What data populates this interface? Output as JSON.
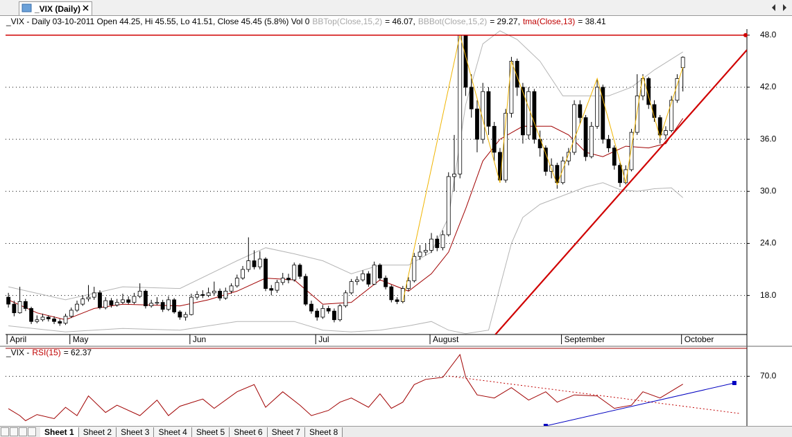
{
  "tab_title": "_VIX (Daily)",
  "sheets": [
    "Sheet 1",
    "Sheet 2",
    "Sheet 3",
    "Sheet 4",
    "Sheet 5",
    "Sheet 6",
    "Sheet 7",
    "Sheet 8"
  ],
  "chart_data": [
    {
      "type": "candlestick",
      "title": "_VIX - Daily 03-10-2011 Open 44.25, Hi 45.55, Lo 41.51, Close 45.45 (5.8%) Vol 0",
      "up_color": "#ffffff",
      "down_color": "#000000",
      "xlim": [
        -0.5,
        129.2
      ],
      "ylim": [
        13.5,
        48.7
      ],
      "xticks": [
        {
          "value": 0,
          "label": "April"
        },
        {
          "value": 11,
          "label": "May"
        },
        {
          "value": 32,
          "label": "Jun"
        },
        {
          "value": 54,
          "label": "Jul"
        },
        {
          "value": 74,
          "label": "August"
        },
        {
          "value": 97,
          "label": "September"
        },
        {
          "value": 118,
          "label": "October"
        }
      ],
      "yticks": [
        {
          "value": 18,
          "label": "18.0"
        },
        {
          "value": 24,
          "label": "24.0"
        },
        {
          "value": 30,
          "label": "30.0"
        },
        {
          "value": 36,
          "label": "36.0"
        },
        {
          "value": 42,
          "label": "42.0"
        },
        {
          "value": 48,
          "label": "48.0"
        }
      ],
      "grid": true,
      "x": [
        0,
        1,
        2,
        3,
        4,
        5,
        6,
        7,
        8,
        9,
        10,
        11,
        12,
        13,
        14,
        15,
        16,
        17,
        18,
        19,
        20,
        21,
        22,
        23,
        24,
        25,
        26,
        27,
        28,
        29,
        30,
        31,
        32,
        33,
        34,
        35,
        36,
        37,
        38,
        39,
        40,
        41,
        42,
        43,
        44,
        45,
        46,
        47,
        48,
        49,
        50,
        51,
        52,
        53,
        54,
        55,
        56,
        57,
        58,
        59,
        60,
        61,
        62,
        63,
        64,
        65,
        66,
        67,
        68,
        69,
        70,
        71,
        72,
        73,
        74,
        75,
        76,
        77,
        78,
        79,
        80,
        81,
        82,
        83,
        84,
        85,
        86,
        87,
        88,
        89,
        90,
        91,
        92,
        93,
        94,
        95,
        96,
        97,
        98,
        99,
        100,
        101,
        102,
        103,
        104,
        105,
        106,
        107,
        108,
        109,
        110,
        111,
        112,
        113,
        114,
        115,
        116,
        117,
        118
      ],
      "ohlc": [
        [
          17.8,
          18.3,
          16.6,
          17.0
        ],
        [
          17.0,
          17.4,
          15.6,
          16.0
        ],
        [
          16.0,
          19.0,
          15.9,
          17.3
        ],
        [
          17.3,
          17.6,
          16.2,
          16.5
        ],
        [
          16.5,
          16.7,
          14.7,
          15.0
        ],
        [
          15.0,
          15.7,
          14.8,
          15.2
        ],
        [
          15.2,
          15.9,
          15.0,
          15.5
        ],
        [
          15.5,
          15.7,
          15.0,
          15.3
        ],
        [
          15.3,
          15.6,
          14.7,
          15.0
        ],
        [
          15.0,
          15.3,
          14.5,
          14.8
        ],
        [
          14.8,
          15.9,
          14.6,
          15.6
        ],
        [
          15.6,
          16.6,
          15.4,
          16.3
        ],
        [
          16.3,
          17.4,
          16.1,
          17.0
        ],
        [
          17.0,
          18.0,
          16.8,
          17.6
        ],
        [
          17.6,
          19.2,
          17.3,
          17.8
        ],
        [
          17.8,
          19.0,
          17.5,
          18.3
        ],
        [
          18.3,
          18.6,
          16.4,
          16.6
        ],
        [
          16.6,
          17.8,
          16.4,
          17.4
        ],
        [
          17.4,
          17.7,
          16.6,
          16.9
        ],
        [
          16.9,
          17.6,
          16.7,
          17.2
        ],
        [
          17.2,
          18.2,
          17.0,
          17.5
        ],
        [
          17.5,
          17.9,
          17.0,
          17.2
        ],
        [
          17.2,
          18.3,
          17.0,
          17.9
        ],
        [
          17.9,
          19.4,
          17.7,
          18.5
        ],
        [
          18.5,
          18.7,
          16.5,
          16.8
        ],
        [
          16.8,
          17.5,
          16.6,
          17.1
        ],
        [
          17.1,
          17.8,
          16.9,
          17.2
        ],
        [
          17.2,
          17.5,
          16.1,
          16.4
        ],
        [
          16.4,
          17.9,
          16.2,
          17.5
        ],
        [
          17.5,
          17.7,
          15.9,
          16.1
        ],
        [
          16.1,
          16.3,
          15.2,
          15.5
        ],
        [
          15.5,
          16.1,
          15.1,
          15.8
        ],
        [
          15.8,
          18.2,
          15.7,
          17.8
        ],
        [
          17.8,
          18.5,
          17.5,
          18.1
        ],
        [
          18.1,
          18.6,
          17.7,
          18.0
        ],
        [
          18.0,
          18.9,
          17.8,
          18.3
        ],
        [
          18.3,
          19.6,
          18.0,
          18.5
        ],
        [
          18.5,
          18.8,
          17.4,
          17.7
        ],
        [
          17.7,
          18.9,
          17.5,
          18.5
        ],
        [
          18.5,
          19.4,
          18.2,
          19.1
        ],
        [
          19.1,
          20.4,
          18.9,
          20.0
        ],
        [
          20.0,
          21.4,
          19.8,
          21.0
        ],
        [
          21.0,
          24.7,
          20.7,
          22.0
        ],
        [
          22.0,
          23.2,
          21.0,
          21.3
        ],
        [
          21.3,
          23.1,
          21.0,
          22.2
        ],
        [
          22.2,
          22.4,
          18.5,
          18.8
        ],
        [
          18.8,
          19.2,
          18.0,
          18.6
        ],
        [
          18.6,
          19.8,
          18.3,
          19.5
        ],
        [
          19.5,
          20.6,
          19.2,
          20.0
        ],
        [
          20.0,
          20.5,
          19.4,
          19.8
        ],
        [
          19.8,
          21.8,
          19.6,
          21.5
        ],
        [
          21.5,
          21.7,
          19.9,
          20.2
        ],
        [
          20.2,
          20.5,
          16.8,
          17.0
        ],
        [
          17.0,
          17.4,
          15.9,
          16.2
        ],
        [
          16.2,
          16.5,
          15.1,
          15.5
        ],
        [
          15.5,
          16.9,
          15.3,
          16.5
        ],
        [
          16.5,
          16.8,
          15.9,
          16.2
        ],
        [
          16.2,
          16.5,
          14.9,
          15.2
        ],
        [
          15.2,
          17.0,
          15.0,
          16.8
        ],
        [
          16.8,
          18.6,
          16.6,
          18.3
        ],
        [
          18.3,
          19.9,
          18.1,
          19.6
        ],
        [
          19.6,
          20.2,
          19.2,
          19.8
        ],
        [
          19.8,
          20.9,
          19.6,
          20.5
        ],
        [
          20.5,
          20.8,
          19.0,
          19.3
        ],
        [
          19.3,
          21.9,
          19.2,
          21.5
        ],
        [
          21.5,
          21.7,
          19.7,
          20.0
        ],
        [
          20.0,
          20.3,
          18.7,
          19.0
        ],
        [
          19.0,
          19.2,
          17.2,
          17.5
        ],
        [
          17.5,
          17.8,
          17.0,
          17.3
        ],
        [
          17.3,
          19.1,
          17.1,
          18.8
        ],
        [
          18.8,
          20.1,
          18.5,
          19.7
        ],
        [
          19.7,
          22.9,
          19.5,
          22.5
        ],
        [
          22.5,
          23.8,
          22.1,
          23.0
        ],
        [
          23.0,
          24.0,
          22.6,
          23.2
        ],
        [
          23.2,
          25.2,
          22.9,
          24.5
        ],
        [
          24.5,
          24.9,
          23.1,
          23.5
        ],
        [
          23.5,
          25.5,
          23.2,
          25.0
        ],
        [
          25.0,
          32.2,
          24.8,
          31.7
        ],
        [
          31.7,
          36.5,
          30.0,
          32.0
        ],
        [
          32.0,
          48.0,
          31.5,
          48.0
        ],
        [
          48.0,
          48.0,
          41.0,
          42.0
        ],
        [
          42.0,
          43.5,
          38.5,
          39.5
        ],
        [
          39.5,
          40.5,
          34.5,
          36.0
        ],
        [
          36.0,
          42.5,
          35.5,
          41.5
        ],
        [
          41.5,
          42.0,
          36.5,
          37.5
        ],
        [
          37.5,
          38.0,
          33.5,
          34.5
        ],
        [
          34.5,
          35.0,
          31.0,
          31.3
        ],
        [
          31.3,
          39.5,
          31.0,
          39.0
        ],
        [
          39.0,
          45.5,
          38.5,
          45.0
        ],
        [
          45.0,
          45.3,
          41.0,
          42.0
        ],
        [
          42.0,
          42.5,
          35.5,
          36.5
        ],
        [
          36.5,
          42.0,
          36.0,
          41.5
        ],
        [
          41.5,
          41.8,
          35.5,
          36.0
        ],
        [
          36.0,
          37.0,
          34.0,
          35.0
        ],
        [
          35.0,
          35.3,
          31.8,
          32.3
        ],
        [
          32.3,
          33.8,
          31.5,
          33.0
        ],
        [
          33.0,
          33.3,
          30.3,
          31.0
        ],
        [
          31.0,
          34.0,
          30.8,
          33.5
        ],
        [
          33.5,
          35.0,
          33.0,
          34.5
        ],
        [
          34.5,
          40.5,
          34.2,
          40.0
        ],
        [
          40.0,
          40.5,
          37.8,
          38.5
        ],
        [
          38.5,
          38.8,
          33.5,
          34.0
        ],
        [
          34.0,
          38.0,
          33.8,
          37.5
        ],
        [
          37.5,
          43.0,
          37.2,
          42.0
        ],
        [
          42.0,
          42.3,
          35.5,
          36.0
        ],
        [
          36.0,
          36.5,
          34.5,
          35.0
        ],
        [
          35.0,
          35.3,
          32.5,
          33.0
        ],
        [
          33.0,
          33.3,
          30.5,
          31.0
        ],
        [
          31.0,
          33.0,
          30.8,
          32.5
        ],
        [
          32.5,
          37.2,
          32.3,
          36.8
        ],
        [
          36.8,
          43.5,
          36.5,
          41.0
        ],
        [
          41.0,
          43.5,
          40.5,
          43.0
        ],
        [
          43.0,
          43.2,
          39.5,
          40.0
        ],
        [
          40.0,
          40.5,
          38.0,
          38.5
        ],
        [
          38.5,
          38.8,
          35.5,
          36.5
        ],
        [
          36.5,
          37.5,
          36.0,
          37.0
        ],
        [
          37.0,
          41.0,
          36.8,
          40.5
        ],
        [
          40.5,
          43.5,
          40.2,
          43.0
        ],
        [
          44.25,
          45.55,
          41.51,
          45.45
        ]
      ],
      "series": [
        {
          "name": "BBTop(Close,15,2)",
          "label": "= 46.07,",
          "color": "#b4b4b4",
          "name_color": "#a8a8a8",
          "x": [
            0,
            10,
            20,
            30,
            40,
            45,
            50,
            55,
            60,
            65,
            70,
            74,
            77,
            80,
            83,
            86,
            89,
            93,
            97,
            101,
            105,
            109,
            113,
            118
          ],
          "values": [
            19,
            17.5,
            19,
            18.8,
            22,
            23.5,
            22.8,
            22,
            20.5,
            21.5,
            21.5,
            23,
            27,
            40,
            47,
            48.5,
            47.5,
            45,
            41,
            41,
            41,
            42,
            44,
            46.07
          ]
        },
        {
          "name": "BBBot(Close,15,2)",
          "label": "= 29.27,",
          "color": "#b4b4b4",
          "name_color": "#a8a8a8",
          "x": [
            0,
            10,
            20,
            30,
            40,
            50,
            55,
            60,
            65,
            70,
            74,
            77,
            80,
            84,
            86,
            88,
            90,
            93,
            97,
            101,
            104,
            107,
            110,
            113,
            116,
            118
          ],
          "values": [
            14.5,
            13.8,
            14.2,
            14,
            15,
            15,
            14,
            13.8,
            14,
            14.5,
            15,
            14,
            13.6,
            14,
            19,
            24,
            27,
            28.5,
            29.5,
            30.5,
            31,
            30.2,
            30,
            30.3,
            30.4,
            29.27
          ]
        },
        {
          "name": "tma(Close,13)",
          "label": "= 38.41",
          "color": "#a00000",
          "name_color": "#c00000",
          "x": [
            0,
            5,
            10,
            15,
            20,
            30,
            35,
            40,
            45,
            50,
            55,
            60,
            65,
            70,
            74,
            77,
            80,
            83,
            86,
            90,
            95,
            98,
            101,
            104,
            108,
            112,
            115,
            118
          ],
          "values": [
            17.5,
            16,
            15.2,
            16.5,
            17,
            16.8,
            17.5,
            18.5,
            20,
            19.8,
            17,
            17.2,
            19.8,
            18.5,
            20.5,
            23,
            28,
            33.5,
            36,
            37.5,
            37.5,
            36.5,
            34.5,
            34,
            35.2,
            35,
            35.5,
            38.41
          ]
        }
      ],
      "lines": [
        {
          "color": "#f0b400",
          "x": [
            69,
            79,
            86,
            88,
            96,
            103,
            108,
            111,
            114,
            118
          ],
          "values": [
            17.3,
            48.0,
            31.0,
            45.0,
            30.8,
            43.0,
            31.0,
            43.3,
            36.2,
            44.3
          ]
        },
        {
          "color": "#d00000",
          "width": 2.2,
          "x": [
            85.2,
            129.2
          ],
          "values": [
            13.5,
            46.3
          ]
        },
        {
          "color": "#d00000",
          "width": 1.5,
          "end_dot": true,
          "x": [
            -0.5,
            129.2
          ],
          "values": [
            48,
            48
          ]
        }
      ]
    },
    {
      "type": "line",
      "title": "_VIX -",
      "xlim": [
        -0.5,
        129.2
      ],
      "ylim": [
        22,
        97
      ],
      "yticks": [
        {
          "value": 70,
          "label": "70.0"
        }
      ],
      "grid": true,
      "series": [
        {
          "name": "RSI(15)",
          "label": "= 62.37",
          "color": "#a00000",
          "name_color": "#c00000",
          "x": [
            0,
            2,
            3,
            5,
            8,
            10,
            12,
            14,
            17,
            19,
            23,
            26,
            28,
            30,
            34,
            36,
            40,
            43,
            45,
            48,
            51,
            53,
            56,
            58,
            60,
            63,
            65,
            67,
            69,
            71,
            73,
            76,
            79,
            80,
            82,
            85,
            88,
            91,
            94,
            96,
            99,
            103,
            106,
            109,
            111,
            114,
            118
          ],
          "values": [
            38.7,
            32,
            27,
            33,
            29,
            40,
            32,
            51,
            35,
            42,
            32,
            47,
            32,
            41,
            48,
            39,
            55,
            62,
            40,
            55,
            42,
            32,
            37,
            45,
            49,
            40,
            53,
            39,
            45,
            62,
            67,
            69,
            91,
            69,
            52,
            49,
            59,
            47,
            55,
            45,
            52,
            51,
            39,
            42,
            55,
            49,
            62.37
          ]
        }
      ],
      "lines": [
        {
          "color": "#c00000",
          "dash": true,
          "x": [
            77,
            128
          ],
          "values": [
            70.2,
            34
          ]
        },
        {
          "color": "#0000c0",
          "end_squares": true,
          "x": [
            94,
            127
          ],
          "values": [
            22,
            63.5
          ]
        }
      ]
    }
  ]
}
